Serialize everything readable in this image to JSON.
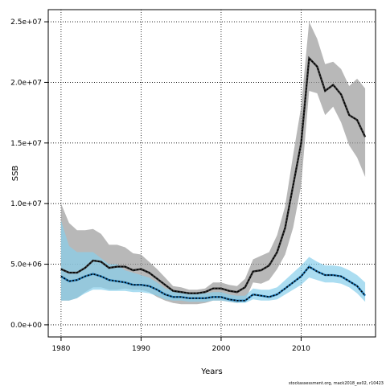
{
  "chart_data": {
    "type": "area",
    "xlabel": "Years",
    "ylabel": "SSB",
    "xlim": [
      1978.4,
      2019.3
    ],
    "ylim": [
      -1000000,
      26000000
    ],
    "x_ticks": [
      1980,
      1990,
      2000,
      2010
    ],
    "y_ticks": [
      0,
      5000000,
      10000000,
      15000000,
      20000000,
      25000000
    ],
    "y_tick_labels": [
      "0.0e+00",
      "5.0e+06",
      "1.0e+07",
      "1.5e+07",
      "2.0e+07",
      "2.5e+07"
    ],
    "grid": true,
    "colors": {
      "gray_band": "#9a9a9a",
      "blue_band": "#87ceeb",
      "gray_line": "#333333",
      "blue_line": "#1f77b4",
      "dots": "#000000"
    },
    "x": [
      1980,
      1981,
      1982,
      1983,
      1984,
      1985,
      1986,
      1987,
      1988,
      1989,
      1990,
      1991,
      1992,
      1993,
      1994,
      1995,
      1996,
      1997,
      1998,
      1999,
      2000,
      2001,
      2002,
      2003,
      2004,
      2005,
      2006,
      2007,
      2008,
      2009,
      2010,
      2011,
      2012,
      2013,
      2014,
      2015,
      2016,
      2017,
      2018
    ],
    "series": [
      {
        "color": "gray",
        "values": [
          4600000,
          4300000,
          4300000,
          4700000,
          5300000,
          5200000,
          4700000,
          4800000,
          4800000,
          4500000,
          4600000,
          4300000,
          3800000,
          3300000,
          2800000,
          2700000,
          2600000,
          2600000,
          2700000,
          3000000,
          3000000,
          2800000,
          2700000,
          3100000,
          4400000,
          4500000,
          4900000,
          6000000,
          8000000,
          11500000,
          15000000,
          22000000,
          21300000,
          19300000,
          19800000,
          19000000,
          17300000,
          16900000,
          15500000
        ],
        "lower": [
          2000000,
          2000000,
          2200000,
          2700000,
          3100000,
          3100000,
          2900000,
          2900000,
          3000000,
          2900000,
          2900000,
          2700000,
          2300000,
          2000000,
          1800000,
          1700000,
          1700000,
          1700000,
          1800000,
          2000000,
          2000000,
          1900000,
          1800000,
          2000000,
          3500000,
          3400000,
          3700000,
          4600000,
          5800000,
          8000000,
          11500000,
          19300000,
          19100000,
          17300000,
          18000000,
          16700000,
          14800000,
          13800000,
          12200000
        ],
        "upper": [
          10000000,
          8400000,
          7800000,
          7800000,
          7900000,
          7500000,
          6600000,
          6600000,
          6400000,
          5900000,
          5800000,
          5200000,
          4600000,
          3900000,
          3200000,
          3100000,
          2900000,
          2900000,
          3000000,
          3500000,
          3500000,
          3300000,
          3200000,
          3800000,
          5400000,
          5700000,
          6000000,
          7400000,
          9800000,
          14000000,
          18000000,
          25000000,
          23600000,
          21500000,
          21700000,
          21100000,
          19700000,
          20300000,
          19500000
        ]
      },
      {
        "color": "blue",
        "values": [
          4000000,
          3600000,
          3700000,
          4000000,
          4200000,
          4000000,
          3700000,
          3600000,
          3500000,
          3300000,
          3300000,
          3200000,
          2900000,
          2500000,
          2300000,
          2300000,
          2200000,
          2200000,
          2200000,
          2300000,
          2300000,
          2100000,
          2000000,
          2000000,
          2500000,
          2400000,
          2300000,
          2500000,
          3000000,
          3500000,
          4000000,
          4800000,
          4400000,
          4100000,
          4100000,
          4000000,
          3600000,
          3200000,
          2400000
        ],
        "lower": [
          2000000,
          2000000,
          2200000,
          2600000,
          2900000,
          2900000,
          2800000,
          2800000,
          2800000,
          2700000,
          2700000,
          2600000,
          2400000,
          2100000,
          2000000,
          2000000,
          1900000,
          1900000,
          1900000,
          2000000,
          2000000,
          1900000,
          1800000,
          1800000,
          2100000,
          2000000,
          2000000,
          2100000,
          2500000,
          2900000,
          3300000,
          3900000,
          3700000,
          3500000,
          3500000,
          3400000,
          3100000,
          2600000,
          1900000
        ],
        "upper": [
          8600000,
          6500000,
          6000000,
          6000000,
          6000000,
          5500000,
          5000000,
          5000000,
          4500000,
          4300000,
          4100000,
          3900000,
          3500000,
          3000000,
          2800000,
          2700000,
          2600000,
          2600000,
          2600000,
          2700000,
          2700000,
          2500000,
          2400000,
          2400000,
          3000000,
          2900000,
          2900000,
          3100000,
          3700000,
          4300000,
          4900000,
          5600000,
          5200000,
          4900000,
          4900000,
          4800000,
          4500000,
          4100000,
          3500000
        ]
      }
    ]
  },
  "footnote": "stockassessment.org, mack2018_ex02, r10423"
}
